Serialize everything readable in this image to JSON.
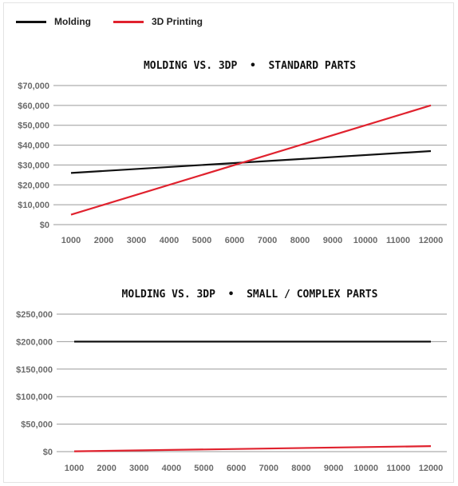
{
  "colors": {
    "molding": "#111111",
    "printing": "#e0222e",
    "grid": "#9a9a9a",
    "tick": "#6b6b6b"
  },
  "legend": [
    {
      "name": "Molding",
      "color": "#111111"
    },
    {
      "name": "3D Printing",
      "color": "#e0222e"
    }
  ],
  "chart_data": [
    {
      "type": "line",
      "title": "MOLDING VS. 3DP  •  STANDARD PARTS",
      "xlabel": "",
      "ylabel": "",
      "x": [
        1000,
        12000
      ],
      "xticks": [
        "1000",
        "2000",
        "3000",
        "4000",
        "5000",
        "6000",
        "7000",
        "8000",
        "9000",
        "10000",
        "11000",
        "12000"
      ],
      "xlim": [
        1000,
        12000
      ],
      "ylim": [
        0,
        70000
      ],
      "yticks": [
        0,
        10000,
        20000,
        30000,
        40000,
        50000,
        60000,
        70000
      ],
      "ytick_labels": [
        "$0",
        "$10,000",
        "$20,000",
        "$30,000",
        "$40,000",
        "$50,000",
        "$60,000",
        "$70,000"
      ],
      "grid": "horizontal",
      "legend": "top-left",
      "series": [
        {
          "name": "Molding",
          "color": "#111111",
          "values": [
            26000,
            37000
          ]
        },
        {
          "name": "3D Printing",
          "color": "#e0222e",
          "values": [
            5000,
            60000
          ]
        }
      ]
    },
    {
      "type": "line",
      "title": "MOLDING VS. 3DP  •  SMALL / COMPLEX PARTS",
      "xlabel": "",
      "ylabel": "",
      "x": [
        1000,
        12000
      ],
      "xticks": [
        "1000",
        "2000",
        "3000",
        "4000",
        "5000",
        "6000",
        "7000",
        "8000",
        "9000",
        "10000",
        "11000",
        "12000"
      ],
      "xlim": [
        1000,
        12000
      ],
      "ylim": [
        0,
        250000
      ],
      "yticks": [
        0,
        50000,
        100000,
        150000,
        200000,
        250000
      ],
      "ytick_labels": [
        "$0",
        "$50,000",
        "$100,000",
        "$150,000",
        "$200,000",
        "$250,000"
      ],
      "grid": "horizontal",
      "legend": "top-left",
      "series": [
        {
          "name": "Molding",
          "color": "#111111",
          "values": [
            200000,
            200000
          ]
        },
        {
          "name": "3D Printing",
          "color": "#e0222e",
          "values": [
            500,
            10000
          ]
        }
      ]
    }
  ]
}
